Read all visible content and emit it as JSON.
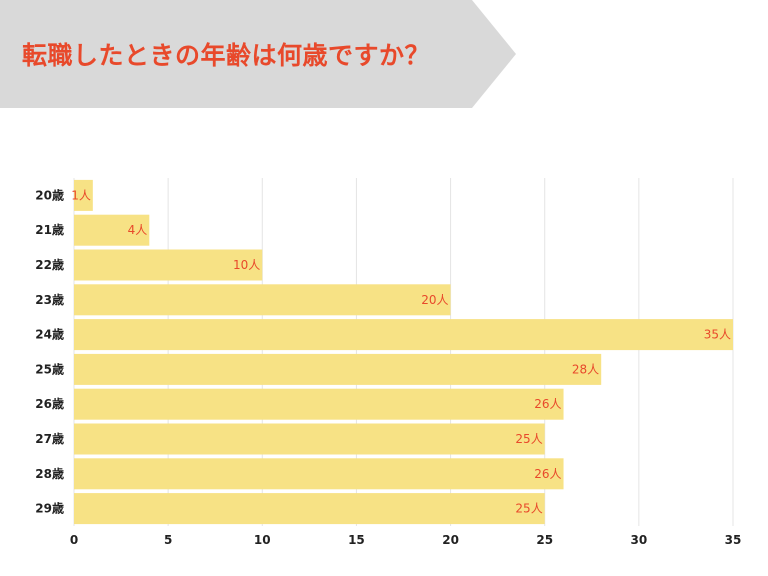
{
  "title": "転職したときの年齢は何歳ですか？",
  "colors": {
    "banner": "#d9d9d9",
    "title_text": "#e8492b",
    "bar": "#f7e285",
    "label": "#e8492b",
    "grid": "#e4e4e4",
    "axis_text": "#222222"
  },
  "chart_data": {
    "type": "bar",
    "orientation": "horizontal",
    "title": "転職したときの年齢は何歳ですか？",
    "categories": [
      "20歳",
      "21歳",
      "22歳",
      "23歳",
      "24歳",
      "25歳",
      "26歳",
      "27歳",
      "28歳",
      "29歳"
    ],
    "values": [
      1,
      4,
      10,
      20,
      35,
      28,
      26,
      25,
      26,
      25
    ],
    "value_labels": [
      "1人",
      "4人",
      "10人",
      "20人",
      "35人",
      "28人",
      "26人",
      "25人",
      "26人",
      "25人"
    ],
    "xticks": [
      "0",
      "5",
      "10",
      "15",
      "20",
      "25",
      "30",
      "35"
    ],
    "xlim": [
      0,
      35
    ],
    "grid": true,
    "xlabel": "",
    "ylabel": ""
  }
}
